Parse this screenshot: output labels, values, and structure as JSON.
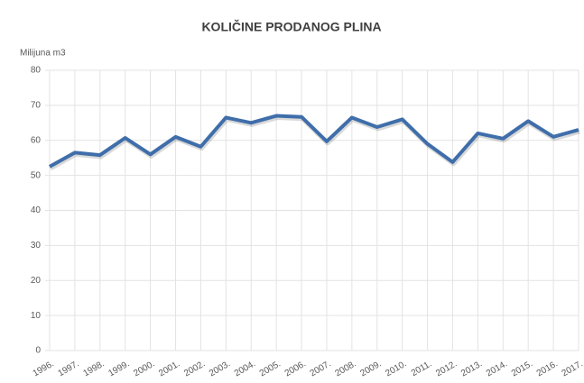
{
  "chart_data": {
    "type": "line",
    "title": "KOLIČINE PRODANOG PLINA",
    "y_label": "Milijuna m3",
    "categories": [
      "1996.",
      "1997.",
      "1998.",
      "1999.",
      "2000.",
      "2001.",
      "2002.",
      "2003.",
      "2004.",
      "2005.",
      "2006.",
      "2007.",
      "2008.",
      "2009.",
      "2010.",
      "2011.",
      "2012.",
      "2013.",
      "2014.",
      "2015.",
      "2016.",
      "2017."
    ],
    "values": [
      52.5,
      56.5,
      55.8,
      60.7,
      56,
      61,
      58.2,
      66.5,
      65,
      67,
      66.7,
      59.7,
      66.5,
      63.8,
      66,
      59,
      53.8,
      62,
      60.5,
      65.5,
      61,
      63
    ],
    "color": "#3f6eaa",
    "ylim": [
      0,
      80
    ],
    "yticks": [
      0,
      10,
      20,
      30,
      40,
      50,
      60,
      70,
      80
    ],
    "grid": true
  }
}
